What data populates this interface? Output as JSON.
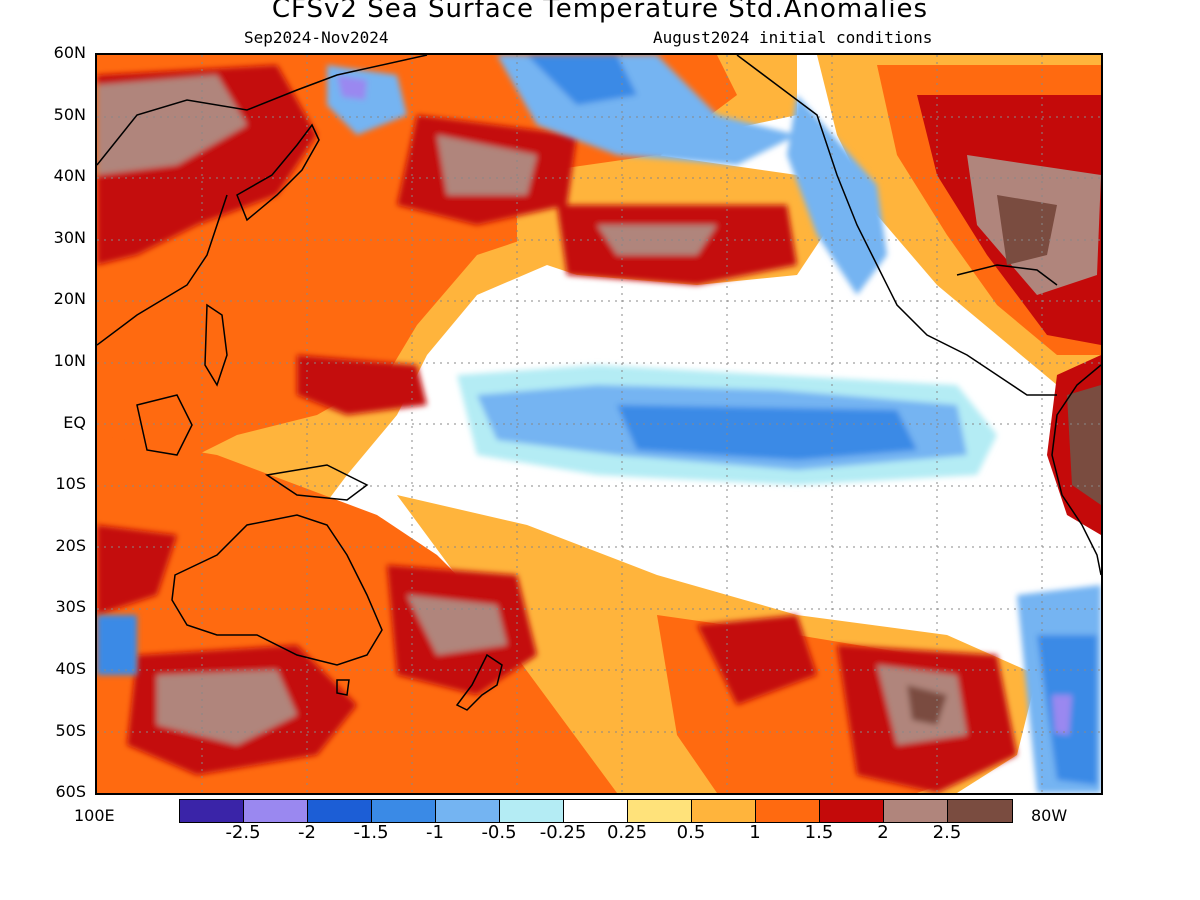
{
  "title": "CFSv2 Sea Surface Temperature Std.Anomalies",
  "subtitle_left": "Sep2024-Nov2024",
  "subtitle_right": "August2024 initial conditions",
  "lat_labels": [
    "60N",
    "50N",
    "40N",
    "30N",
    "20N",
    "10N",
    "EQ",
    "10S",
    "20S",
    "30S",
    "40S",
    "50S",
    "60S"
  ],
  "lon_left": "100E",
  "lon_right": "80W",
  "colorbar": {
    "colors": [
      "#3a24a8",
      "#9a88f0",
      "#1c5ed6",
      "#3a8ae6",
      "#74b4f2",
      "#b4ecf4",
      "#ffffff",
      "#ffe27a",
      "#ffb43c",
      "#ff6a10",
      "#c40a0a",
      "#b0857c",
      "#7a4c40"
    ],
    "labels": [
      "-2.5",
      "-2",
      "-1.5",
      "-1",
      "-0.5",
      "-0.25",
      "0.25",
      "0.5",
      "1",
      "1.5",
      "2",
      "2.5"
    ]
  }
}
